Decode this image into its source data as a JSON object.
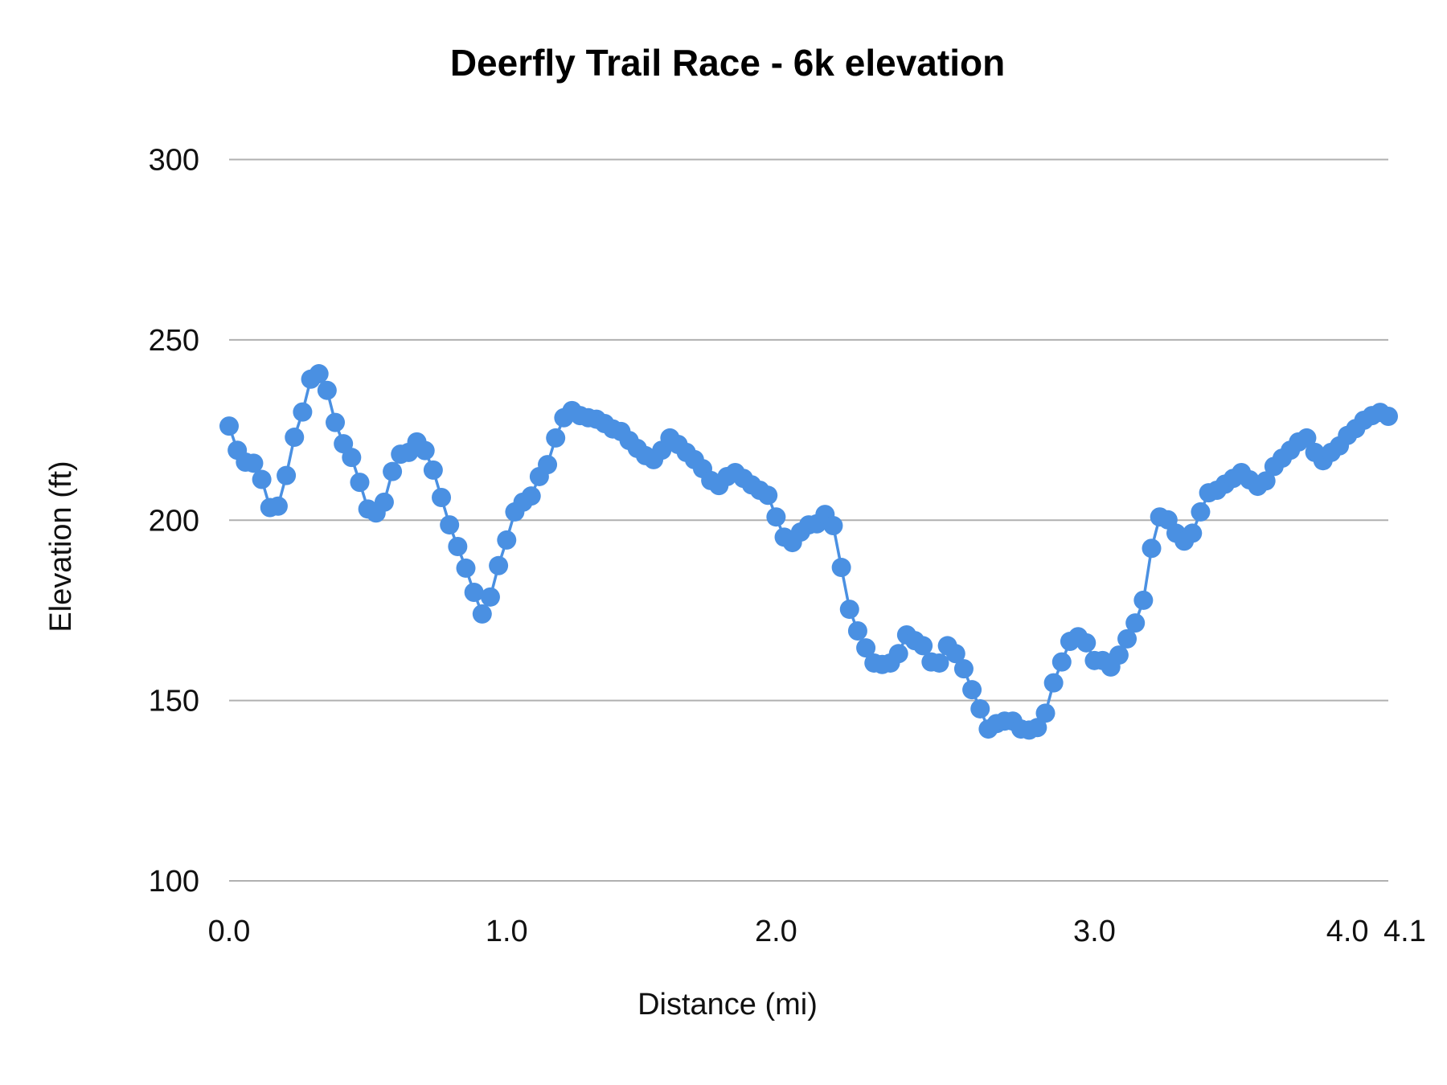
{
  "chart_data": {
    "type": "line",
    "title": "Deerfly Trail Race - 6k elevation",
    "xlabel": "Distance (mi)",
    "ylabel": "Elevation (ft)",
    "ylim": [
      100,
      300
    ],
    "y_ticks": [
      "100",
      "150",
      "200",
      "250",
      "300"
    ],
    "x_tick_labels": [
      "0.0",
      "1.0",
      "2.0",
      "3.0",
      "4.0",
      "4.1"
    ],
    "grid": true,
    "markers": true,
    "color": "#4a90e2",
    "x": [
      0,
      0.03,
      0.06,
      0.09,
      0.12,
      0.15,
      0.18,
      0.21,
      0.24,
      0.26,
      0.29,
      0.32,
      0.35,
      0.38,
      0.41,
      0.44,
      0.47,
      0.5,
      0.53,
      0.56,
      0.59,
      0.62,
      0.65,
      0.68,
      0.71,
      0.74,
      0.76,
      0.79,
      0.82,
      0.85,
      0.88,
      0.91,
      0.94,
      0.97,
      1.0,
      1.03,
      1.06,
      1.09,
      1.12,
      1.15,
      1.18,
      1.21,
      1.24,
      1.27,
      1.3,
      1.33,
      1.36,
      1.39,
      1.42,
      1.45,
      1.48,
      1.52,
      1.55,
      1.58,
      1.61,
      1.64,
      1.67,
      1.7,
      1.73,
      1.76,
      1.79,
      1.82,
      1.85,
      1.88,
      1.91,
      1.94,
      1.97,
      2.0,
      2.03,
      2.05,
      2.08,
      2.1,
      2.13,
      2.15,
      2.18,
      2.21,
      2.23,
      2.26,
      2.28,
      2.31,
      2.33,
      2.36,
      2.38,
      2.41,
      2.44,
      2.46,
      2.49,
      2.51,
      2.54,
      2.56,
      2.59,
      2.62,
      2.64,
      2.67,
      2.69,
      2.72,
      2.74,
      2.77,
      2.79,
      2.82,
      2.85,
      2.87,
      2.9,
      2.92,
      2.95,
      2.97,
      3.0,
      3.03,
      3.06,
      3.09,
      3.12,
      3.15,
      3.18,
      3.21,
      3.24,
      3.27,
      3.3,
      3.33,
      3.36,
      3.39,
      3.42,
      3.45,
      3.48,
      3.52,
      3.55,
      3.58,
      3.61,
      3.64,
      3.67,
      3.7,
      3.73,
      3.76,
      3.79,
      3.82,
      3.85,
      3.88,
      3.91,
      3.94,
      3.97,
      4.0,
      4.03,
      4.07,
      4.1
    ],
    "y": [
      226.1,
      219.4,
      216.1,
      215.8,
      211.3,
      203.5,
      203.9,
      212.4,
      223.0,
      230.0,
      239.1,
      240.6,
      236.0,
      227.1,
      221.2,
      217.4,
      210.5,
      203.1,
      202.0,
      205.0,
      213.5,
      218.3,
      218.8,
      221.7,
      219.3,
      213.9,
      206.3,
      198.7,
      192.7,
      186.7,
      180.0,
      174.0,
      178.7,
      187.4,
      194.5,
      202.3,
      205.0,
      206.7,
      212.1,
      215.4,
      222.8,
      228.4,
      230.4,
      229.0,
      228.4,
      228.0,
      226.8,
      225.3,
      224.6,
      222.1,
      219.9,
      217.9,
      216.8,
      219.4,
      222.8,
      221.0,
      218.8,
      216.8,
      214.3,
      211.0,
      209.6,
      212.1,
      213.2,
      211.6,
      209.8,
      208.3,
      206.9,
      200.9,
      195.3,
      193.8,
      196.7,
      198.7,
      199.0,
      201.6,
      198.5,
      186.9,
      175.3,
      169.3,
      164.6,
      160.4,
      160.0,
      160.4,
      163.0,
      168.2,
      166.6,
      165.2,
      160.7,
      160.4,
      165.2,
      163.0,
      158.8,
      153.0,
      147.7,
      142.1,
      143.6,
      144.3,
      144.3,
      142.1,
      141.8,
      142.5,
      146.5,
      154.9,
      160.7,
      166.4,
      167.7,
      166.0,
      161.1,
      161.1,
      159.3,
      162.6,
      167.1,
      171.5,
      177.8,
      192.2,
      200.9,
      200.1,
      196.4,
      194.2,
      196.4,
      202.3,
      207.6,
      208.3,
      210.0,
      211.6,
      213.2,
      211.2,
      209.4,
      210.9,
      214.9,
      217.2,
      219.4,
      221.7,
      222.8,
      218.8,
      216.5,
      218.8,
      220.6,
      223.5,
      225.4,
      227.7,
      229.0,
      229.9,
      228.8
    ]
  }
}
